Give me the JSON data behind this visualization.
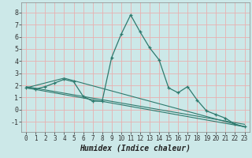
{
  "xlabel": "Humidex (Indice chaleur)",
  "background_color": "#cce8e8",
  "grid_color": "#e8b0b0",
  "line_color": "#2d7a6e",
  "xlim": [
    -0.5,
    23.5
  ],
  "ylim": [
    -1.8,
    8.8
  ],
  "xticks": [
    0,
    1,
    2,
    3,
    4,
    5,
    6,
    7,
    8,
    9,
    10,
    11,
    12,
    13,
    14,
    15,
    16,
    17,
    18,
    19,
    20,
    21,
    22,
    23
  ],
  "yticks": [
    -1,
    0,
    1,
    2,
    3,
    4,
    5,
    6,
    7,
    8
  ],
  "main_x": [
    0,
    1,
    2,
    3,
    4,
    5,
    6,
    7,
    8,
    9,
    10,
    11,
    12,
    13,
    14,
    15,
    16,
    17,
    18,
    19,
    20,
    21,
    22,
    23
  ],
  "main_y": [
    1.8,
    1.7,
    1.9,
    2.2,
    2.5,
    2.3,
    1.1,
    0.7,
    0.7,
    4.3,
    6.2,
    7.8,
    6.4,
    5.1,
    4.1,
    1.8,
    1.4,
    1.9,
    0.8,
    -0.1,
    -0.4,
    -0.7,
    -1.2,
    -1.4
  ],
  "trend1_x": [
    0,
    23
  ],
  "trend1_y": [
    1.8,
    -1.4
  ],
  "trend2_x": [
    0,
    23
  ],
  "trend2_y": [
    1.9,
    -1.2
  ],
  "trend3_x": [
    0,
    4,
    23
  ],
  "trend3_y": [
    1.8,
    2.6,
    -1.4
  ],
  "xlabel_fontsize": 7,
  "tick_fontsize": 5.5
}
